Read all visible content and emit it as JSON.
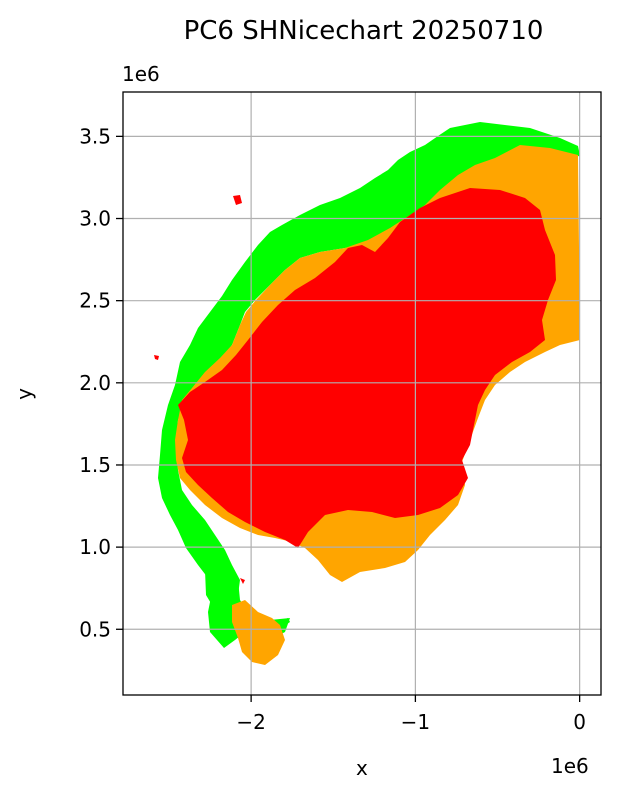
{
  "title": "PC6 SHNicechart 20250710",
  "xlabel": "x",
  "ylabel": "y",
  "x_offset": "1e6",
  "y_offset": "1e6",
  "x_ticks": [
    "−2",
    "−1",
    "0"
  ],
  "y_ticks": [
    "0.5",
    "1.0",
    "1.5",
    "2.0",
    "2.5",
    "3.0",
    "3.5"
  ],
  "legend": [],
  "colors": {
    "red_zone": "#ff0000",
    "orange_zone": "#ffa500",
    "green_zone": "#00ff00",
    "grid": "#b0b0b0"
  },
  "map": {
    "type": "choropleth-ice-chart",
    "x_range": [
      -2.78,
      0.13
    ],
    "y_range": [
      0.1,
      3.77
    ],
    "units_scale": "1e6",
    "grid": true,
    "zones": [
      "green",
      "orange",
      "red"
    ]
  }
}
